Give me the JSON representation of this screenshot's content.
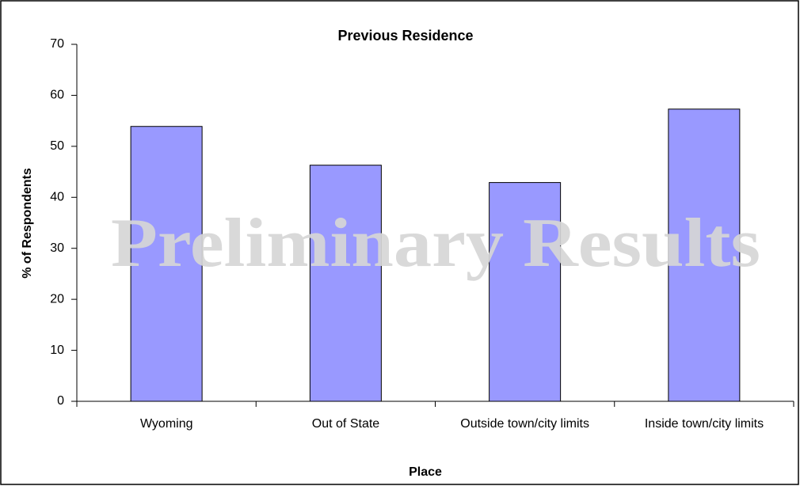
{
  "chart_data": {
    "type": "bar",
    "title": "Previous Residence",
    "xlabel": "Place",
    "ylabel": "% of Respondents",
    "annotation": "Preliminary Results",
    "categories": [
      "Wyoming",
      "Out of State",
      "Outside town/city limits",
      "Inside town/city limits"
    ],
    "values": [
      53.9,
      46.3,
      42.9,
      57.3
    ],
    "color": "#9999ff",
    "ylim": [
      0,
      70
    ],
    "yticks": [
      0,
      10,
      20,
      30,
      40,
      50,
      60,
      70
    ],
    "grid": false
  }
}
